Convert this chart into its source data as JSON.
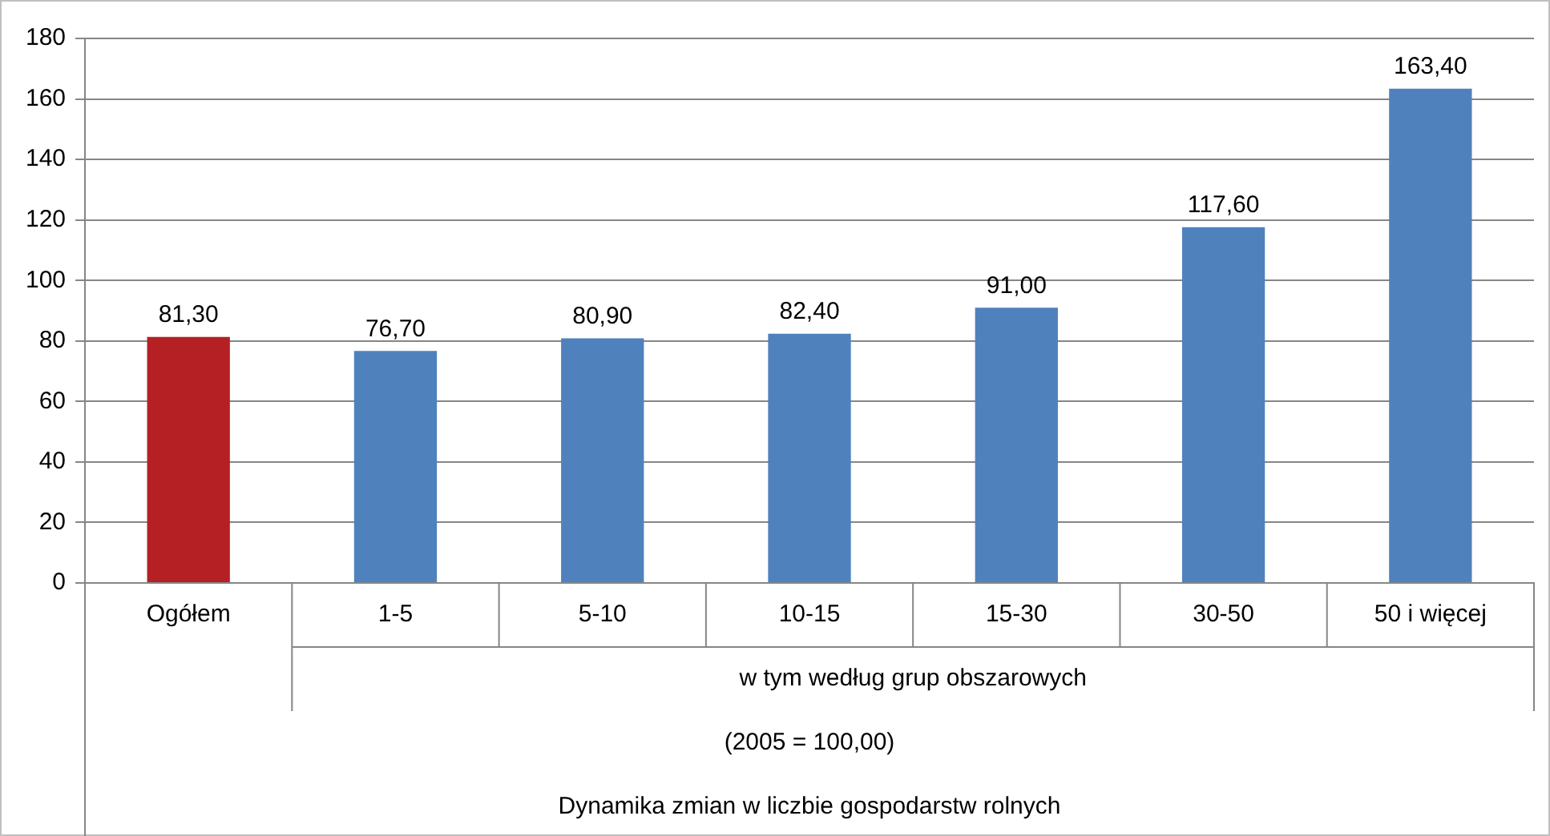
{
  "chart_data": {
    "type": "bar",
    "categories": [
      "Ogółem",
      "1-5",
      "5-10",
      "10-15",
      "15-30",
      "30-50",
      "50 i więcej"
    ],
    "values": [
      81.3,
      76.7,
      80.9,
      82.4,
      91.0,
      117.6,
      163.4
    ],
    "colors": [
      "#b52025",
      "#4f81bd",
      "#4f81bd",
      "#4f81bd",
      "#4f81bd",
      "#4f81bd",
      "#4f81bd"
    ],
    "value_labels": [
      "81,30",
      "76,70",
      "80,90",
      "82,40",
      "91,00",
      "117,60",
      "163,40"
    ],
    "ylim": [
      0,
      180
    ],
    "yticks": [
      0,
      20,
      40,
      60,
      80,
      100,
      120,
      140,
      160,
      180
    ],
    "grid": "y",
    "legend": false,
    "annotations": [
      "w tym według grup obszarowych",
      "(2005 = 100,00)",
      "Dynamika zmian w liczbie gospodarstw rolnych"
    ]
  }
}
